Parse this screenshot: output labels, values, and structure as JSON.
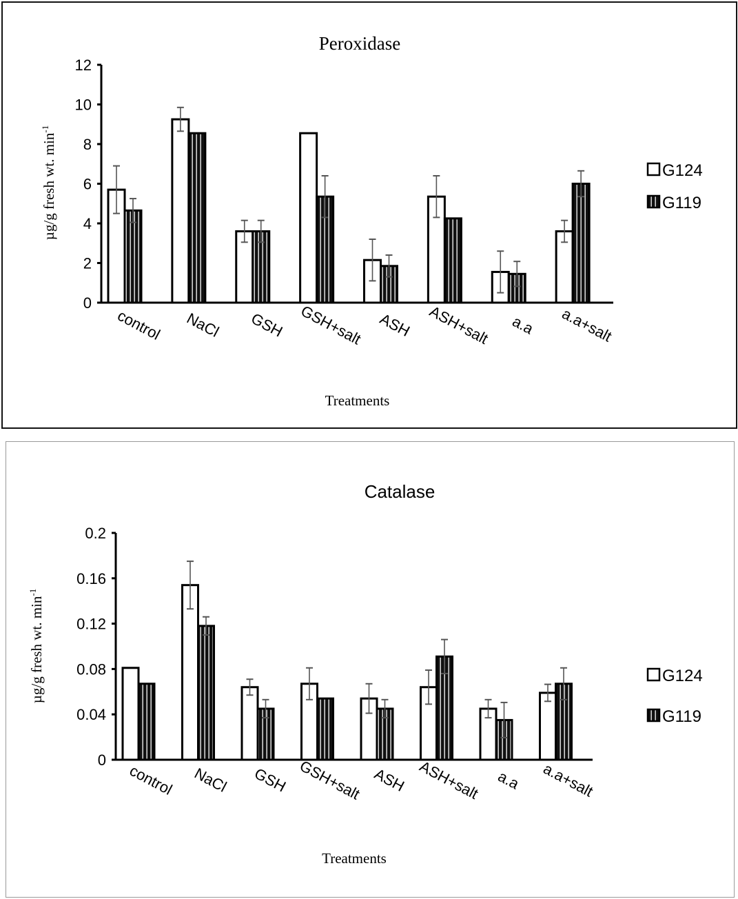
{
  "chart_data": [
    {
      "type": "bar",
      "title": "Peroxidase",
      "xlabel": "Treatments",
      "ylabel": "µg/g fresh wt. min",
      "ylabel_superscript": "-1",
      "ylim": [
        0,
        12
      ],
      "yticks": [
        "0",
        "2",
        "4",
        "6",
        "8",
        "10",
        "12"
      ],
      "grid": false,
      "legend": "right",
      "categories": [
        "control",
        "NaCl",
        "GSH",
        "GSH+salt",
        "ASH",
        "ASH+salt",
        "a.a",
        "a.a+salt"
      ],
      "series": [
        {
          "name": "G124",
          "fill": "#ffffff",
          "values": [
            5.7,
            9.25,
            3.6,
            8.55,
            2.15,
            5.35,
            1.55,
            3.6
          ],
          "errors": [
            1.2,
            0.6,
            0.55,
            null,
            1.05,
            1.05,
            1.05,
            0.55
          ]
        },
        {
          "name": "G119",
          "fill": "#111111",
          "values": [
            4.65,
            8.55,
            3.6,
            5.35,
            1.85,
            4.25,
            1.45,
            6.0
          ],
          "errors": [
            0.6,
            null,
            0.55,
            1.05,
            0.55,
            null,
            0.63,
            0.65
          ]
        }
      ]
    },
    {
      "type": "bar",
      "title": "Catalase",
      "xlabel": "Treatments",
      "ylabel": "µg/g fresh wt. min",
      "ylabel_superscript": "-1",
      "ylim": [
        0,
        0.2
      ],
      "yticks": [
        "0",
        "0.04",
        "0.08",
        "0.12",
        "0.16",
        "0.2"
      ],
      "grid": false,
      "legend": "right",
      "categories": [
        "control",
        "NaCl",
        "GSH",
        "GSH+salt",
        "ASH",
        "ASH+salt",
        "a.a",
        "a.a+salt"
      ],
      "series": [
        {
          "name": "G124",
          "fill": "#ffffff",
          "values": [
            0.081,
            0.154,
            0.064,
            0.067,
            0.054,
            0.064,
            0.045,
            0.059
          ],
          "errors": [
            null,
            0.021,
            0.007,
            0.014,
            0.013,
            0.015,
            0.008,
            0.0075
          ]
        },
        {
          "name": "G119",
          "fill": "#111111",
          "values": [
            0.067,
            0.118,
            0.045,
            0.054,
            0.045,
            0.091,
            0.035,
            0.067
          ],
          "errors": [
            null,
            0.008,
            0.008,
            null,
            0.008,
            0.015,
            0.0155,
            0.014
          ]
        }
      ]
    }
  ]
}
